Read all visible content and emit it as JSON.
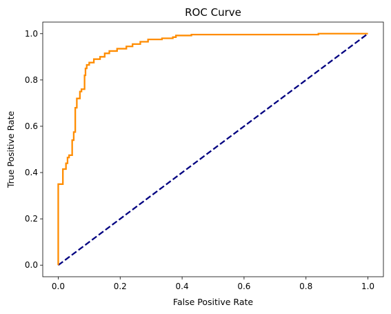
{
  "chart_data": {
    "type": "line",
    "title": "ROC Curve",
    "xlabel": "False Positive Rate",
    "ylabel": "True Positive Rate",
    "xlim": [
      -0.05,
      1.05
    ],
    "ylim": [
      -0.05,
      1.05
    ],
    "x_ticks": [
      "0.0",
      "0.2",
      "0.4",
      "0.6",
      "0.8",
      "1.0"
    ],
    "y_ticks": [
      "0.0",
      "0.2",
      "0.4",
      "0.6",
      "0.8",
      "1.0"
    ],
    "grid": false,
    "series": [
      {
        "color": "#ff8c00",
        "style": "solid",
        "step": true,
        "points": [
          [
            0.0,
            0.0
          ],
          [
            0.0,
            0.35
          ],
          [
            0.015,
            0.35
          ],
          [
            0.015,
            0.415
          ],
          [
            0.025,
            0.415
          ],
          [
            0.025,
            0.44
          ],
          [
            0.03,
            0.44
          ],
          [
            0.03,
            0.465
          ],
          [
            0.035,
            0.465
          ],
          [
            0.035,
            0.475
          ],
          [
            0.045,
            0.475
          ],
          [
            0.045,
            0.54
          ],
          [
            0.05,
            0.54
          ],
          [
            0.05,
            0.575
          ],
          [
            0.055,
            0.575
          ],
          [
            0.055,
            0.68
          ],
          [
            0.06,
            0.68
          ],
          [
            0.06,
            0.72
          ],
          [
            0.07,
            0.72
          ],
          [
            0.07,
            0.75
          ],
          [
            0.075,
            0.75
          ],
          [
            0.075,
            0.76
          ],
          [
            0.085,
            0.76
          ],
          [
            0.085,
            0.82
          ],
          [
            0.088,
            0.82
          ],
          [
            0.088,
            0.85
          ],
          [
            0.092,
            0.85
          ],
          [
            0.092,
            0.865
          ],
          [
            0.1,
            0.865
          ],
          [
            0.1,
            0.875
          ],
          [
            0.115,
            0.875
          ],
          [
            0.115,
            0.89
          ],
          [
            0.135,
            0.89
          ],
          [
            0.135,
            0.9
          ],
          [
            0.15,
            0.9
          ],
          [
            0.15,
            0.915
          ],
          [
            0.165,
            0.915
          ],
          [
            0.165,
            0.925
          ],
          [
            0.19,
            0.925
          ],
          [
            0.19,
            0.935
          ],
          [
            0.22,
            0.935
          ],
          [
            0.22,
            0.945
          ],
          [
            0.24,
            0.945
          ],
          [
            0.24,
            0.955
          ],
          [
            0.265,
            0.955
          ],
          [
            0.265,
            0.965
          ],
          [
            0.29,
            0.965
          ],
          [
            0.29,
            0.975
          ],
          [
            0.335,
            0.975
          ],
          [
            0.335,
            0.98
          ],
          [
            0.37,
            0.98
          ],
          [
            0.37,
            0.985
          ],
          [
            0.38,
            0.985
          ],
          [
            0.38,
            0.992
          ],
          [
            0.43,
            0.992
          ],
          [
            0.43,
            0.996
          ],
          [
            0.84,
            0.996
          ],
          [
            0.84,
            1.0
          ],
          [
            1.0,
            1.0
          ]
        ]
      },
      {
        "color": "#000080",
        "style": "dashed",
        "step": false,
        "points": [
          [
            0.0,
            0.0
          ],
          [
            1.0,
            1.0
          ]
        ]
      }
    ]
  }
}
